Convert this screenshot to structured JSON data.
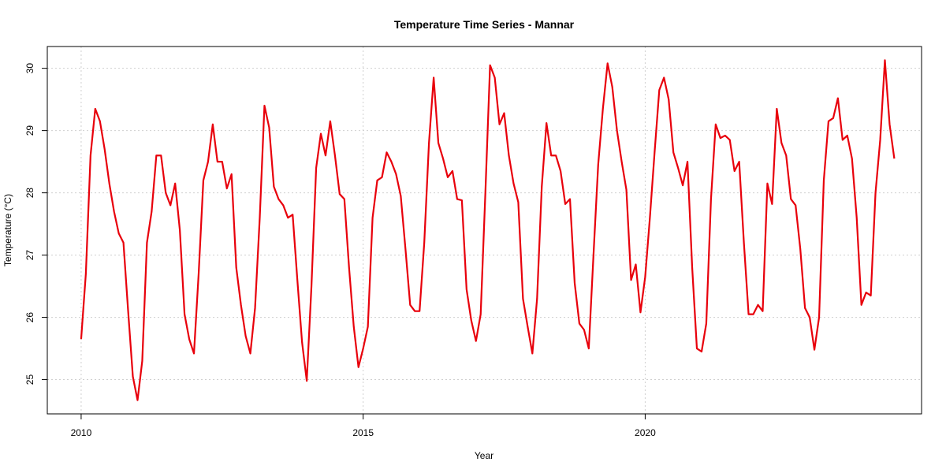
{
  "chart_data": {
    "type": "line",
    "title": "Temperature Time Series - Mannar",
    "xlabel": "Year",
    "ylabel": "Temperature (°C)",
    "xlim": [
      2009.4,
      2024.9
    ],
    "ylim": [
      24.45,
      30.35
    ],
    "x_ticks": [
      2010,
      2015,
      2020
    ],
    "y_ticks": [
      25,
      26,
      27,
      28,
      29,
      30
    ],
    "grid": true,
    "line_color": "#e8000b",
    "series": [
      {
        "start_year": 2010,
        "step_months": 1,
        "values": [
          25.65,
          26.7,
          28.6,
          29.35,
          29.15,
          28.7,
          28.15,
          27.7,
          27.35,
          27.2,
          26.1,
          25.05,
          24.67,
          25.3,
          27.2,
          27.7,
          28.6,
          28.6,
          28.0,
          27.8,
          28.15,
          27.4,
          26.05,
          25.65,
          25.42,
          26.7,
          28.2,
          28.5,
          29.1,
          28.5,
          28.5,
          28.07,
          28.3,
          26.8,
          26.2,
          25.7,
          25.42,
          26.15,
          27.6,
          29.4,
          29.05,
          28.1,
          27.9,
          27.8,
          27.6,
          27.65,
          26.6,
          25.6,
          24.98,
          26.5,
          28.4,
          28.95,
          28.6,
          29.15,
          28.6,
          27.98,
          27.9,
          26.8,
          25.85,
          25.2,
          25.5,
          25.85,
          27.6,
          28.2,
          28.25,
          28.65,
          28.5,
          28.3,
          27.95,
          27.1,
          26.2,
          26.1,
          26.1,
          27.2,
          28.8,
          29.85,
          28.8,
          28.55,
          28.25,
          28.35,
          27.9,
          27.88,
          26.45,
          25.95,
          25.62,
          26.05,
          28.0,
          30.05,
          29.85,
          29.1,
          29.28,
          28.6,
          28.15,
          27.85,
          26.3,
          25.85,
          25.42,
          26.3,
          28.1,
          29.12,
          28.6,
          28.6,
          28.35,
          27.82,
          27.9,
          26.55,
          25.9,
          25.8,
          25.5,
          27.0,
          28.45,
          29.35,
          30.08,
          29.7,
          29.0,
          28.5,
          28.05,
          26.6,
          26.85,
          26.08,
          26.65,
          27.6,
          28.65,
          29.65,
          29.85,
          29.5,
          28.65,
          28.4,
          28.12,
          28.5,
          26.8,
          25.5,
          25.45,
          25.9,
          27.9,
          29.1,
          28.88,
          28.92,
          28.85,
          28.35,
          28.5,
          27.2,
          26.05,
          26.05,
          26.2,
          26.1,
          28.15,
          27.82,
          29.35,
          28.8,
          28.6,
          27.9,
          27.8,
          27.1,
          26.15,
          26.0,
          25.48,
          26.0,
          28.2,
          29.15,
          29.2,
          29.52,
          28.85,
          28.92,
          28.55,
          27.6,
          26.2,
          26.4,
          26.35,
          28.0,
          28.85,
          30.13,
          29.1,
          28.55
        ]
      }
    ]
  }
}
